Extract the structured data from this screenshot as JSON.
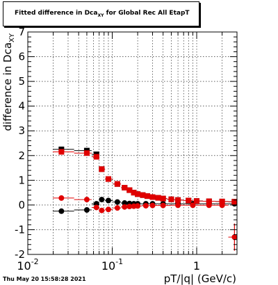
{
  "title": {
    "prefix": "Fitted difference in Dca",
    "subscript": "XY",
    "suffix": "  for Global Rec All EtapT"
  },
  "datestamp": "Thu May 20 15:58:28 2021",
  "chart_data": {
    "type": "scatter",
    "title": "Fitted difference in Dca_XY for Global Rec All EtapT",
    "xlabel": "pT/|q| (GeV/c)",
    "ylabel_prefix": "difference in Dca",
    "ylabel_subscript": "XY",
    "xscale": "log",
    "xlim": [
      0.01,
      3.0
    ],
    "ylim": [
      -2,
      7
    ],
    "grid": true,
    "x_ticks": [
      {
        "value": 0.01,
        "label": "10",
        "sup": "-2"
      },
      {
        "value": 0.1,
        "label": "10",
        "sup": "-1"
      },
      {
        "value": 1,
        "label": "1",
        "sup": ""
      }
    ],
    "y_ticks": [
      -2,
      -1,
      0,
      1,
      2,
      3,
      4,
      5,
      6,
      7
    ],
    "series": [
      {
        "marker": "square",
        "color": "#000000",
        "points": [
          [
            0.025,
            2.25
          ],
          [
            0.05,
            2.2
          ],
          [
            0.065,
            2.05
          ],
          [
            0.075,
            1.45
          ],
          [
            0.09,
            1.05
          ],
          [
            0.115,
            0.85
          ],
          [
            0.14,
            0.7
          ],
          [
            0.16,
            0.6
          ],
          [
            0.18,
            0.5
          ],
          [
            0.2,
            0.44
          ],
          [
            0.23,
            0.4
          ],
          [
            0.26,
            0.36
          ],
          [
            0.3,
            0.32
          ],
          [
            0.35,
            0.29
          ],
          [
            0.4,
            0.26
          ],
          [
            0.5,
            0.23
          ],
          [
            0.6,
            0.2
          ],
          [
            0.8,
            0.18
          ],
          [
            1.0,
            0.16
          ],
          [
            1.4,
            0.15
          ],
          [
            2.0,
            0.14
          ],
          [
            2.8,
            0.13
          ]
        ]
      },
      {
        "marker": "circle",
        "color": "#000000",
        "points": [
          [
            0.025,
            -0.25
          ],
          [
            0.05,
            -0.2
          ],
          [
            0.065,
            0.05
          ],
          [
            0.075,
            0.22
          ],
          [
            0.09,
            0.18
          ],
          [
            0.115,
            0.12
          ],
          [
            0.14,
            0.08
          ],
          [
            0.16,
            0.06
          ],
          [
            0.18,
            0.05
          ],
          [
            0.2,
            0.05
          ],
          [
            0.25,
            0.05
          ],
          [
            0.3,
            0.05
          ],
          [
            0.4,
            0.05
          ],
          [
            0.6,
            0.05
          ],
          [
            0.9,
            0.05
          ],
          [
            1.4,
            0.05
          ],
          [
            2.0,
            0.05
          ],
          [
            2.8,
            0.05
          ]
        ]
      },
      {
        "marker": "square",
        "color": "#e00000",
        "points": [
          [
            0.025,
            2.15
          ],
          [
            0.05,
            2.1
          ],
          [
            0.065,
            1.95
          ],
          [
            0.075,
            1.45
          ],
          [
            0.09,
            1.05
          ],
          [
            0.115,
            0.85
          ],
          [
            0.14,
            0.7
          ],
          [
            0.16,
            0.6
          ],
          [
            0.18,
            0.5
          ],
          [
            0.2,
            0.44
          ],
          [
            0.23,
            0.4
          ],
          [
            0.26,
            0.36
          ],
          [
            0.3,
            0.32
          ],
          [
            0.35,
            0.29
          ],
          [
            0.4,
            0.26
          ],
          [
            0.5,
            0.23
          ],
          [
            0.6,
            0.2
          ],
          [
            0.8,
            0.18
          ],
          [
            1.0,
            0.16
          ],
          [
            1.4,
            0.15
          ],
          [
            2.0,
            0.14
          ],
          [
            2.8,
            0.13
          ]
        ]
      },
      {
        "marker": "circle",
        "color": "#e00000",
        "points": [
          [
            0.025,
            0.28
          ],
          [
            0.05,
            0.22
          ],
          [
            0.065,
            -0.1
          ],
          [
            0.075,
            -0.22
          ],
          [
            0.09,
            -0.18
          ],
          [
            0.115,
            -0.12
          ],
          [
            0.14,
            -0.08
          ],
          [
            0.16,
            -0.06
          ],
          [
            0.18,
            -0.05
          ],
          [
            0.2,
            -0.04
          ],
          [
            0.25,
            -0.03
          ],
          [
            0.3,
            -0.02
          ],
          [
            0.4,
            -0.02
          ],
          [
            0.6,
            -0.01
          ],
          [
            0.9,
            -0.01
          ],
          [
            1.4,
            -0.01
          ],
          [
            2.0,
            -0.01
          ],
          [
            2.8,
            -1.3
          ]
        ]
      }
    ]
  }
}
